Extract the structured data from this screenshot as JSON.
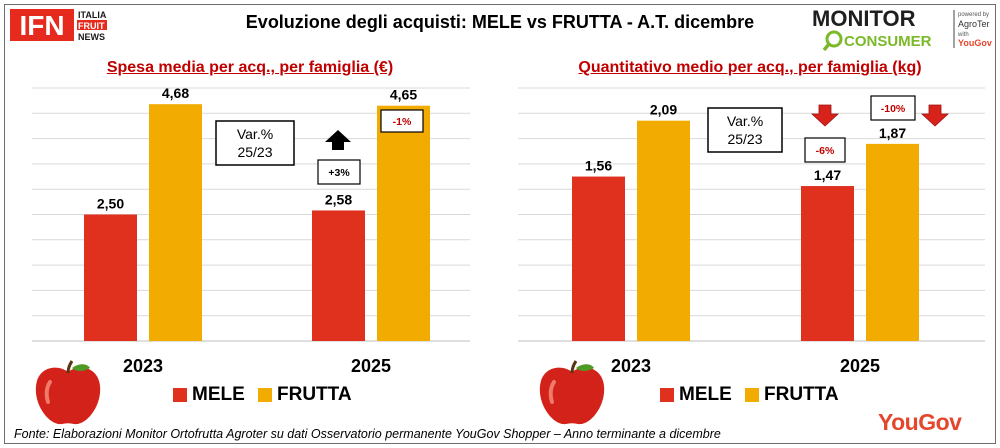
{
  "header": {
    "title": "Evoluzione degli acquisti: MELE vs FRUTTA  - A.T. dicembre",
    "ifn_logo": {
      "letters": "IFN",
      "line1": "ITALIA",
      "line2": "FRUIT",
      "line3": "NEWS"
    },
    "monitor_logo": {
      "word1": "MONITOR",
      "word2": "CONSUMER",
      "powered": "powered by",
      "brand1": "AgroTer",
      "with": "with",
      "brand2": "YouGov"
    }
  },
  "colors": {
    "mele": "#e0301e",
    "frutta": "#f2ab00",
    "title_red": "#c00000",
    "grid": "#d9d9d9"
  },
  "legend": {
    "mele": "MELE",
    "frutta": "FRUTTA"
  },
  "chart_data": [
    {
      "type": "bar",
      "title": "Spesa media per acq., per famiglia (€)",
      "categories": [
        "2023",
        "2025"
      ],
      "series": [
        {
          "name": "MELE",
          "values": [
            2.5,
            2.58
          ],
          "labels": [
            "2,50",
            "2,58"
          ]
        },
        {
          "name": "FRUTTA",
          "values": [
            4.68,
            4.65
          ],
          "labels": [
            "4,68",
            "4,65"
          ]
        }
      ],
      "ylim": [
        0,
        5
      ],
      "grid": true,
      "annotations": {
        "var_box": "Var.% 25/23",
        "var_box_lines": [
          "Var.%",
          "25/23"
        ],
        "mele_change": "+3%",
        "mele_direction": "up",
        "frutta_change": "-1%",
        "frutta_direction": "none"
      }
    },
    {
      "type": "bar",
      "title": "Quantitativo medio per acq., per famiglia (kg)",
      "categories": [
        "2023",
        "2025"
      ],
      "series": [
        {
          "name": "MELE",
          "values": [
            1.56,
            1.47
          ],
          "labels": [
            "1,56",
            "1,47"
          ]
        },
        {
          "name": "FRUTTA",
          "values": [
            2.09,
            1.87
          ],
          "labels": [
            "2,09",
            "1,87"
          ]
        }
      ],
      "ylim": [
        0,
        2.4
      ],
      "grid": true,
      "annotations": {
        "var_box": "Var.% 25/23",
        "var_box_lines": [
          "Var.%",
          "25/23"
        ],
        "mele_change": "-6%",
        "mele_direction": "down",
        "frutta_change": "-10%",
        "frutta_direction": "down"
      }
    }
  ],
  "footer": {
    "source": "Fonte: Elaborazioni Monitor Ortofrutta Agroter su dati Osservatorio permanente YouGov Shopper  – Anno terminante a dicembre",
    "brand": "YouGov"
  }
}
